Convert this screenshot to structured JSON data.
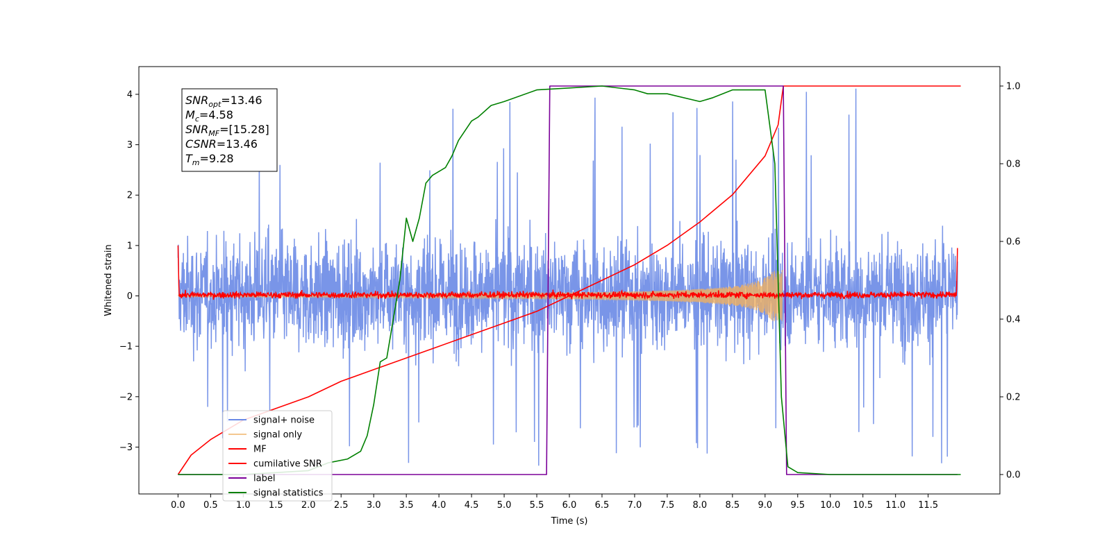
{
  "chart_data": {
    "type": "line",
    "title": "",
    "xlabel": "Time (s)",
    "ylabel": "Whitened strain",
    "y2label": "",
    "xlim": [
      -0.6,
      12.6
    ],
    "ylim": [
      -3.93,
      4.55
    ],
    "y2lim": [
      -0.05,
      1.05
    ],
    "xticks": [
      "0.0",
      "0.5",
      "1.0",
      "1.5",
      "2.0",
      "2.5",
      "3.0",
      "3.5",
      "4.0",
      "4.5",
      "5.0",
      "5.5",
      "6.0",
      "6.5",
      "7.0",
      "7.5",
      "8.0",
      "8.5",
      "9.0",
      "9.5",
      "10.0",
      "10.5",
      "11.0",
      "11.5"
    ],
    "yticks": [
      "−3",
      "−2",
      "−1",
      "0",
      "1",
      "2",
      "3",
      "4"
    ],
    "y2ticks": [
      "0.0",
      "0.2",
      "0.4",
      "0.6",
      "0.8",
      "1.0"
    ],
    "grid": false,
    "legend_position": "lower-left",
    "annotation": {
      "lines": [
        {
          "base": "SNR",
          "sub": "opt",
          "value": "=13.46"
        },
        {
          "base": "M",
          "sub": "c",
          "value": "=4.58"
        },
        {
          "base": "SNR",
          "sub": "MF",
          "value": "=[15.28]"
        },
        {
          "base": "CSNR",
          "sub": "",
          "value": "=13.46"
        },
        {
          "base": "T",
          "sub": "m",
          "value": "=9.28"
        }
      ]
    },
    "series": [
      {
        "name": "signal+ noise",
        "color": "#6a89e6",
        "axis": "left",
        "kind": "noise",
        "band": [
          -1.8,
          2.4
        ],
        "peaks_max": 4.17,
        "peaks_min": -3.4
      },
      {
        "name": "signal only",
        "color": "#f0b060",
        "axis": "left",
        "kind": "chirp",
        "x_end": 9.28,
        "amp_end": 0.5
      },
      {
        "name": "MF",
        "color": "#ff0000",
        "axis": "left",
        "kind": "noise-small",
        "band": [
          -0.12,
          0.15
        ]
      },
      {
        "name": "cumilative SNR",
        "color": "#ff0000",
        "axis": "right",
        "x": [
          0.0,
          0.2,
          0.5,
          1.0,
          1.5,
          2.0,
          2.5,
          3.0,
          3.5,
          4.0,
          4.5,
          5.0,
          5.5,
          6.0,
          6.5,
          7.0,
          7.5,
          8.0,
          8.5,
          9.0,
          9.2,
          9.28,
          12.0
        ],
        "y": [
          0.0,
          0.05,
          0.09,
          0.14,
          0.17,
          0.2,
          0.24,
          0.27,
          0.3,
          0.33,
          0.36,
          0.39,
          0.42,
          0.46,
          0.5,
          0.54,
          0.59,
          0.65,
          0.72,
          0.82,
          0.9,
          1.0,
          1.0
        ]
      },
      {
        "name": "label",
        "color": "#7b0099",
        "axis": "right",
        "x": [
          0.0,
          5.65,
          5.7,
          9.28,
          9.33,
          11.95
        ],
        "y": [
          0.0,
          0.0,
          1.0,
          1.0,
          0.0,
          0.0
        ]
      },
      {
        "name": "signal statistics",
        "color": "#008000",
        "axis": "right",
        "x": [
          0.0,
          1.0,
          2.0,
          2.3,
          2.6,
          2.8,
          2.9,
          3.0,
          3.1,
          3.2,
          3.3,
          3.4,
          3.5,
          3.6,
          3.7,
          3.8,
          3.9,
          4.0,
          4.1,
          4.2,
          4.3,
          4.5,
          4.6,
          4.8,
          5.0,
          5.5,
          6.0,
          6.5,
          7.0,
          7.2,
          7.5,
          8.0,
          8.2,
          8.5,
          9.0,
          9.15,
          9.25,
          9.35,
          9.5,
          10.0,
          12.0
        ],
        "y": [
          0.0,
          0.0,
          0.01,
          0.03,
          0.04,
          0.06,
          0.1,
          0.18,
          0.29,
          0.3,
          0.4,
          0.5,
          0.66,
          0.6,
          0.66,
          0.75,
          0.77,
          0.78,
          0.79,
          0.82,
          0.86,
          0.91,
          0.92,
          0.95,
          0.96,
          0.99,
          0.995,
          1.0,
          0.99,
          0.98,
          0.98,
          0.96,
          0.97,
          0.99,
          0.99,
          0.8,
          0.2,
          0.02,
          0.005,
          0.0,
          0.0
        ]
      }
    ]
  }
}
